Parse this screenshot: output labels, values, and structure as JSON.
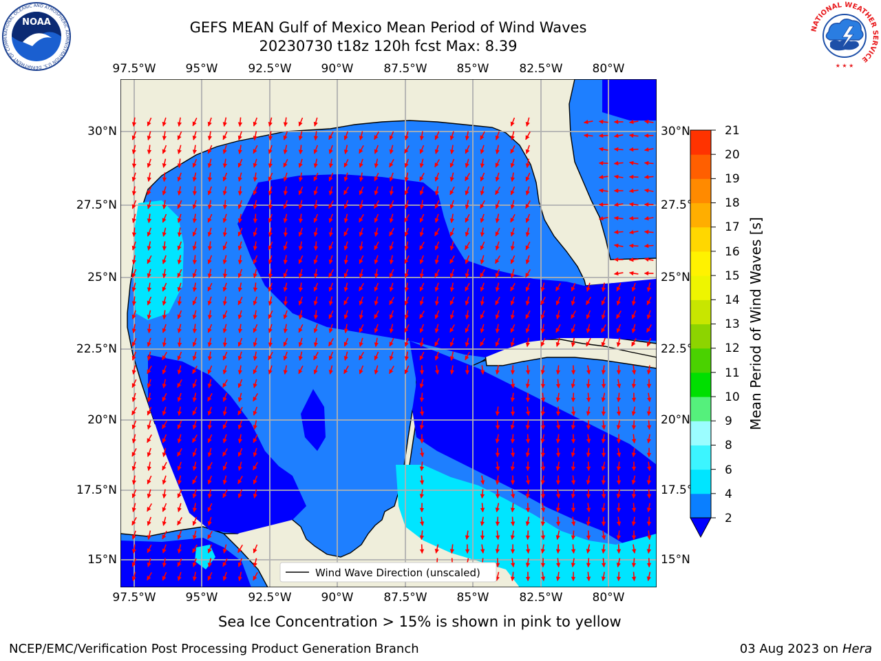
{
  "header": {
    "title_line1": "GEFS MEAN Gulf of Mexico Mean Period of Wind Waves",
    "title_line2": "20230730 t18z 120h fcst   Max: 8.39"
  },
  "logos": {
    "noara_text": "NOAA",
    "noaa_ring_text": "NATIONAL OCEANIC AND ATMOSPHERIC ADMINISTRATION  U.S. DEPARTMENT OF COMMERCE",
    "nws_ring_text": "NATIONAL WEATHER SERVICE"
  },
  "map": {
    "lon_ticks": [
      "97.5°W",
      "95°W",
      "92.5°W",
      "90°W",
      "87.5°W",
      "85°W",
      "82.5°W",
      "80°W"
    ],
    "lat_ticks_left": [
      "30°N",
      "27.5°N",
      "25°N",
      "22.5°N",
      "20°N",
      "17.5°N",
      "15°N"
    ],
    "lat_ticks_right": [
      "30°N",
      "27.5°N",
      "25°N",
      "22.5°N",
      "20°N",
      "17.5°N",
      "15°N"
    ],
    "legend_label": "Wind Wave Direction (unscaled)",
    "colors": {
      "land": "#efeedb",
      "level_dark": "#0000ff",
      "level_mid": "#1e7fff",
      "level_light": "#00e5ff",
      "arrow": "#ff0000",
      "grid": "#b0b0b0"
    }
  },
  "colorbar": {
    "label": "Mean Period of Wind Waves [s]",
    "ticks": [
      "2",
      "4",
      "6",
      "8",
      "9",
      "10",
      "11",
      "12",
      "13",
      "14",
      "15",
      "16",
      "17",
      "18",
      "19",
      "20",
      "21"
    ],
    "colors": [
      "#0a7fff",
      "#00e5ff",
      "#3cf5ff",
      "#9bfdff",
      "#55f07c",
      "#00df00",
      "#4ad200",
      "#8dd400",
      "#c8e600",
      "#eef500",
      "#fff200",
      "#ffd700",
      "#ffae00",
      "#ff8a00",
      "#ff5f00",
      "#ff3300",
      "#ff0000"
    ],
    "extend_color": "#0000ff"
  },
  "footer": {
    "sea_ice_note": "Sea Ice Concentration > 15% is shown in pink to yellow",
    "credit": "NCEP/EMC/Verification Post Processing Product Generation Branch",
    "date": "03 Aug 2023 on",
    "host": "Hera"
  }
}
